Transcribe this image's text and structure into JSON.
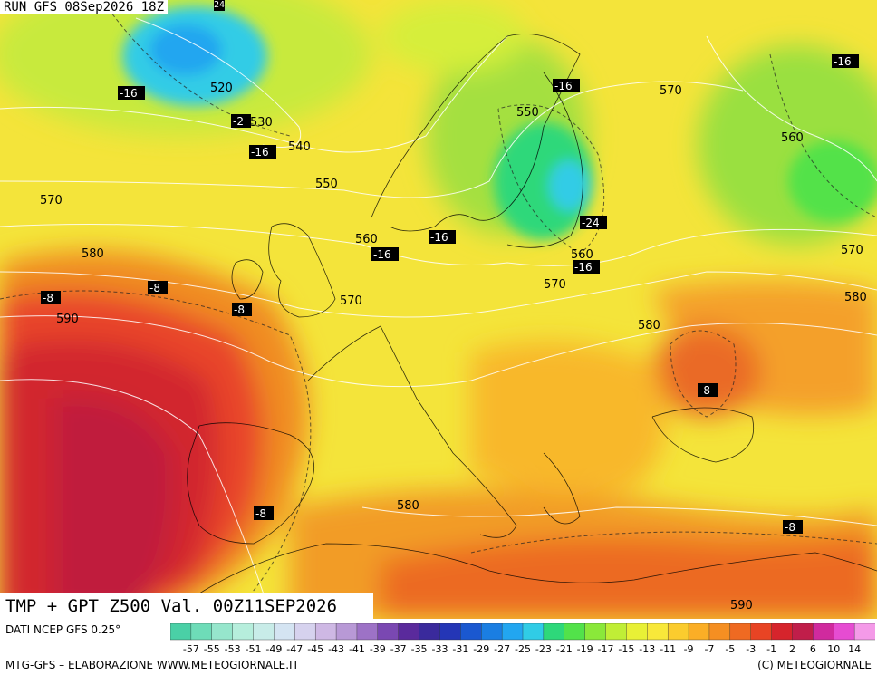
{
  "header": {
    "run": "RUN GFS 08Sep2026 18Z",
    "tag": "24"
  },
  "caption": "TMP + GPT Z500 Val. 00Z11SEP2026",
  "footer": {
    "source": "DATI NCEP GFS 0.25°",
    "credit": "MTG-GFS – ELABORAZIONE WWW.METEOGIORNALE.IT",
    "copyright": "(C) METEOGIORNALE"
  },
  "height_labels": [
    "520",
    "530",
    "540",
    "550",
    "550",
    "560",
    "560",
    "560",
    "570",
    "570",
    "570",
    "570",
    "570",
    "580",
    "580",
    "580",
    "580",
    "590",
    "590"
  ],
  "temp_labels": [
    "-16",
    "-2",
    "-16",
    "-16",
    "-16",
    "-16",
    "-16",
    "-24",
    "-16",
    "-8",
    "-8",
    "-8",
    "-8",
    "-8",
    "-8"
  ],
  "scale": {
    "values": [
      "-57",
      "-55",
      "-53",
      "-51",
      "-49",
      "-47",
      "-45",
      "-43",
      "-41",
      "-39",
      "-37",
      "-35",
      "-33",
      "-31",
      "-29",
      "-27",
      "-25",
      "-23",
      "-21",
      "-19",
      "-17",
      "-15",
      "-13",
      "-11",
      "-9",
      "-7",
      "-5",
      "-3",
      "-1",
      "2",
      "6",
      "10",
      "14"
    ],
    "colors": [
      "#4ad0a6",
      "#6edcb8",
      "#96e6cc",
      "#b6eedc",
      "#c8ece8",
      "#d4e4f2",
      "#d6d2ee",
      "#ceb8e4",
      "#b899d6",
      "#9d72c6",
      "#7a48b2",
      "#5a2a9c",
      "#3a2a9c",
      "#2436b6",
      "#1a58d0",
      "#1a7ee2",
      "#22a6f0",
      "#30cce6",
      "#2ed87a",
      "#52e24a",
      "#8ae83a",
      "#c0ee36",
      "#e8f036",
      "#f8e83a",
      "#fbcc2e",
      "#fbae26",
      "#f58f22",
      "#ef6a22",
      "#e84424",
      "#d6242c",
      "#c01e4a",
      "#d02a9e",
      "#e64cd2",
      "#f49ae8"
    ]
  },
  "colors": {
    "warm_core": "#c81e34",
    "cold_core": "#2ad0f0"
  }
}
